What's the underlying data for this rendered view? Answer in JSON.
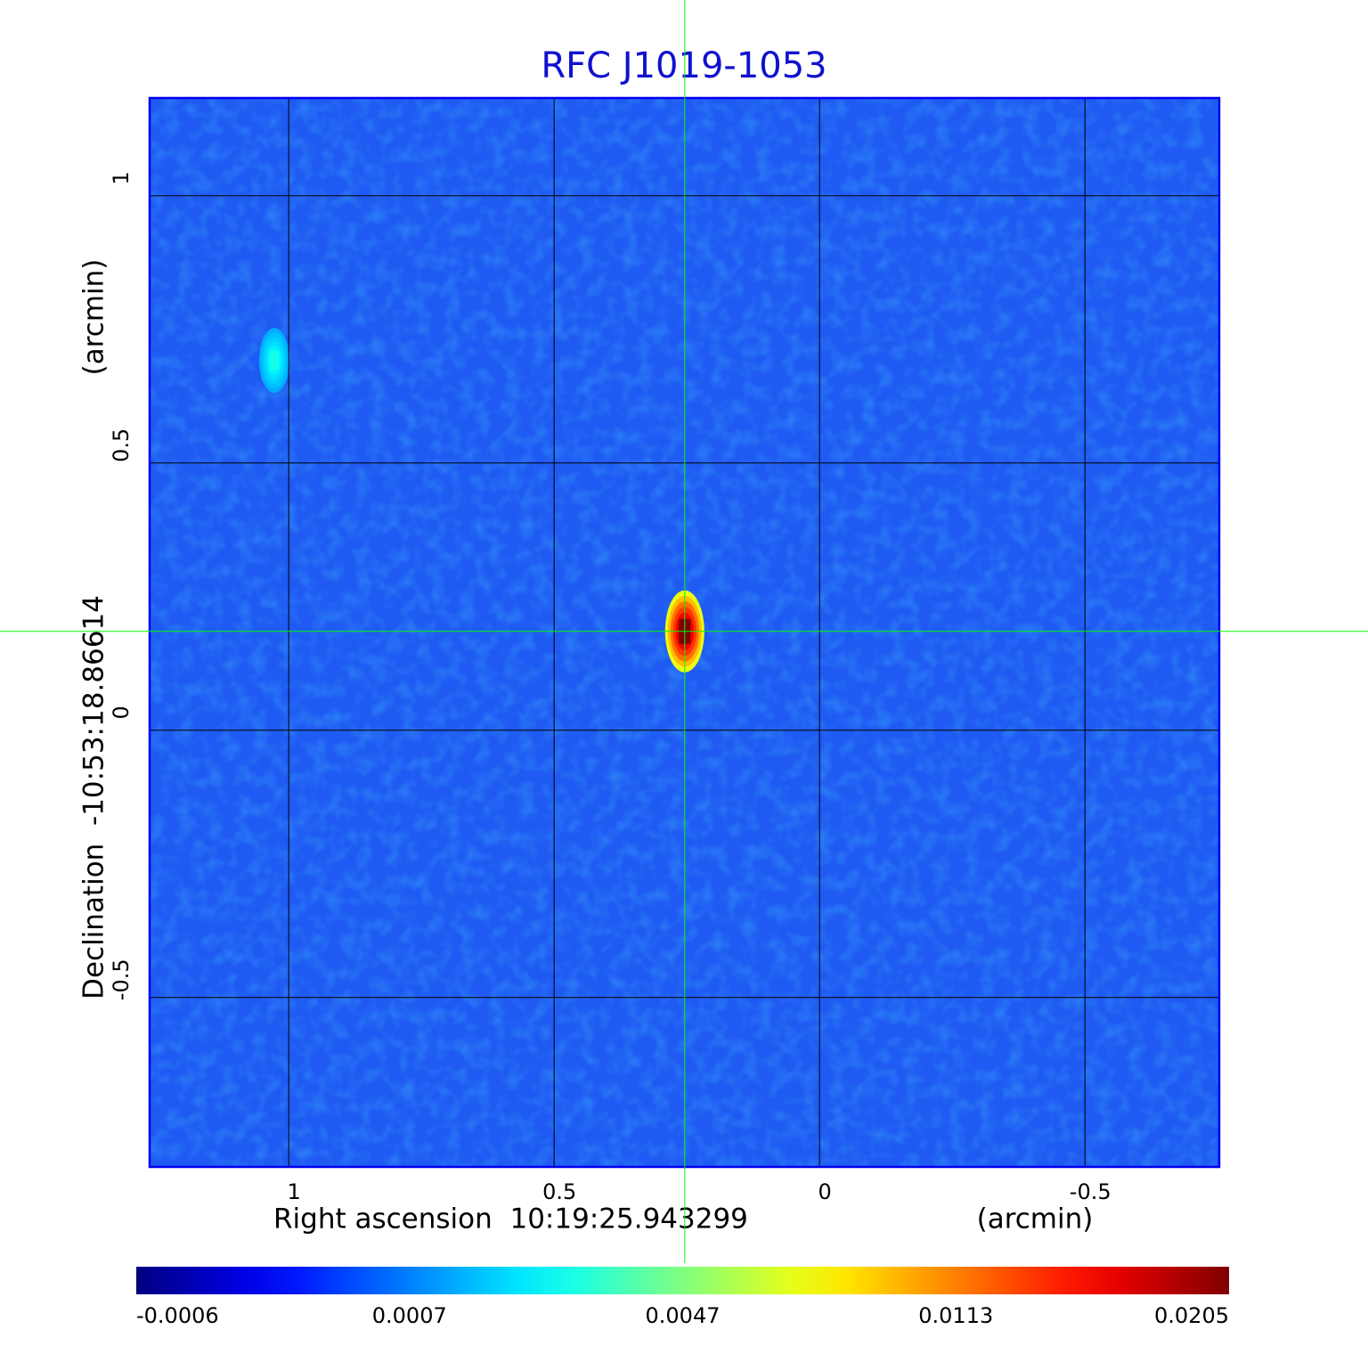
{
  "chart_data": {
    "type": "image",
    "title": "RFC J1019-1053",
    "x_label": "Right ascension  10:19:25.943299",
    "x_unit": "(arcmin)",
    "y_label": "Declination  -10:53:18.86614",
    "y_unit": "(arcmin)",
    "xlim": [
      1.262,
      -0.753
    ],
    "ylim": [
      -0.817,
      1.183
    ],
    "xticks": [
      1.0,
      0.5,
      0.0,
      -0.5
    ],
    "yticks": [
      1.0,
      0.5,
      0.0,
      -0.5
    ],
    "grid": true,
    "colormap": "jet",
    "colorbar_ticks": [
      -0.0006,
      0.0007,
      0.0047,
      0.0113,
      0.0205
    ],
    "crosshair": {
      "x": 0.254,
      "y": 0.185,
      "color": "#00ff00"
    },
    "sources": [
      {
        "x": 0.254,
        "y": 0.185,
        "peak": 0.0205
      },
      {
        "x": 1.027,
        "y": 0.692,
        "peak": 0.003
      }
    ]
  }
}
